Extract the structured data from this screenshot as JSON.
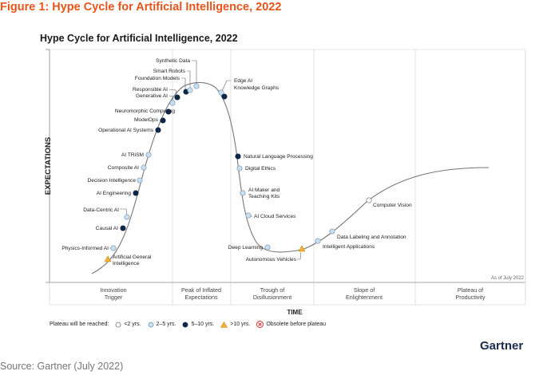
{
  "page": {
    "figure_title": "Figure 1: Hype Cycle for Artificial Intelligence, 2022",
    "source": "Source: Gartner (July 2022)",
    "brand": "Gartner"
  },
  "colors": {
    "figure_title": "#e8541b",
    "light_blue": "#c8dff0",
    "dark_navy": "#0f2747",
    "orange": "#f2b13a",
    "obsolete_red": "#d32f2f",
    "curve": "#777777"
  },
  "chart_data": {
    "type": "line",
    "title": "Hype Cycle for Artificial Intelligence, 2022",
    "ylabel": "EXPECTATIONS",
    "xlabel": "TIME",
    "note": "As of July 2022",
    "phases": [
      {
        "line1": "Innovation",
        "line2": "Trigger"
      },
      {
        "line1": "Peak of Inflated",
        "line2": "Expectations"
      },
      {
        "line1": "Trough of",
        "line2": "Disillusionment"
      },
      {
        "line1": "Slope of",
        "line2": "Enlightenment"
      },
      {
        "line1": "Plateau of",
        "line2": "Productivity"
      }
    ],
    "legend": {
      "prefix": "Plateau will be reached:",
      "items": [
        {
          "key": "lt2",
          "label": "<2 yrs."
        },
        {
          "key": "2to5",
          "label": "2–5 yrs."
        },
        {
          "key": "5to10",
          "label": "5–10 yrs."
        },
        {
          "key": "gt10",
          "label": ">10 yrs."
        },
        {
          "key": "obsolete",
          "label": "Obsolete before plateau"
        }
      ]
    },
    "technologies": [
      {
        "name": "Physics-Informed AI",
        "category": "2to5",
        "side": "left"
      },
      {
        "name": "Artificial General Intelligence",
        "category": "gt10",
        "side": "right"
      },
      {
        "name": "Causal AI",
        "category": "5to10",
        "side": "left"
      },
      {
        "name": "Data-Centric AI",
        "category": "2to5",
        "side": "left"
      },
      {
        "name": "AI Engineering",
        "category": "5to10",
        "side": "left"
      },
      {
        "name": "Decision Intelligence",
        "category": "2to5",
        "side": "left"
      },
      {
        "name": "Composite AI",
        "category": "2to5",
        "side": "left"
      },
      {
        "name": "AI TRiSM",
        "category": "2to5",
        "side": "left"
      },
      {
        "name": "Operational AI Systems",
        "category": "5to10",
        "side": "left"
      },
      {
        "name": "ModelOps",
        "category": "5to10",
        "side": "left"
      },
      {
        "name": "Neuromorphic Computing",
        "category": "5to10",
        "side": "left"
      },
      {
        "name": "Generative AI",
        "category": "2to5",
        "side": "left"
      },
      {
        "name": "Responsible AI",
        "category": "5to10",
        "side": "left"
      },
      {
        "name": "Foundation Models",
        "category": "5to10",
        "side": "left"
      },
      {
        "name": "Smart Robots",
        "category": "2to5",
        "side": "left"
      },
      {
        "name": "Synthetic Data",
        "category": "2to5",
        "side": "left"
      },
      {
        "name": "Edge AI",
        "category": "2to5",
        "side": "right"
      },
      {
        "name": "Knowledge Graphs",
        "category": "5to10",
        "side": "right"
      },
      {
        "name": "Natural Language Processing",
        "category": "5to10",
        "side": "right"
      },
      {
        "name": "Digital Ethics",
        "category": "2to5",
        "side": "right"
      },
      {
        "name": "AI Maker and Teaching Kits",
        "category": "2to5",
        "side": "right"
      },
      {
        "name": "AI Cloud Services",
        "category": "2to5",
        "side": "right"
      },
      {
        "name": "Deep Learning",
        "category": "2to5",
        "side": "left"
      },
      {
        "name": "Autonomous Vehicles",
        "category": "gt10",
        "side": "left"
      },
      {
        "name": "Intelligent Applications",
        "category": "2to5",
        "side": "right"
      },
      {
        "name": "Data Labeling and Annotation",
        "category": "2to5",
        "side": "right"
      },
      {
        "name": "Computer Vision",
        "category": "lt2",
        "side": "right"
      }
    ]
  }
}
